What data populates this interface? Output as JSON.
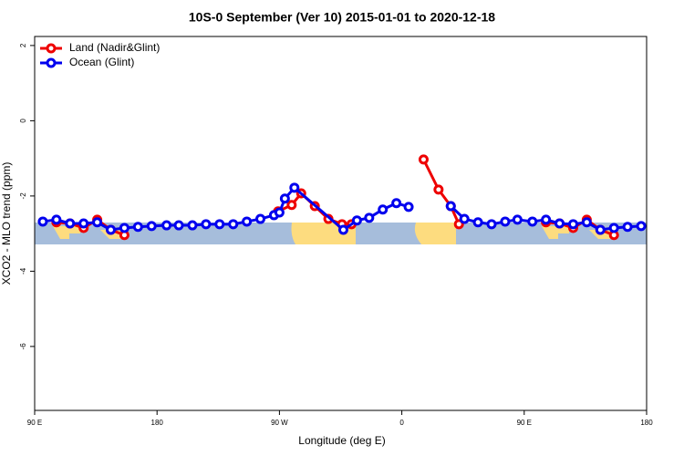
{
  "chart_data": {
    "type": "line",
    "title": "10S-0 September (Ver 10)   2015-01-01 to 2020-12-18",
    "x_label": "Longitude (deg E)",
    "y_label": "XCO2 - MLO trend (ppm)",
    "xlim": [
      90,
      540
    ],
    "xticks": [
      {
        "value": 90,
        "label": "90 E"
      },
      {
        "value": 180,
        "label": "180"
      },
      {
        "value": 270,
        "label": "90 W"
      },
      {
        "value": 360,
        "label": "0"
      },
      {
        "value": 450,
        "label": "90 E"
      },
      {
        "value": 540,
        "label": "180"
      }
    ],
    "ylim": [
      -7.7,
      2.24
    ],
    "yticks": [
      2,
      0,
      -2,
      -4,
      -6
    ],
    "legend": "top-left",
    "series": [
      {
        "name": "Land (Nadir&Glint)",
        "color": "#ee0000",
        "x": [
          106,
          116,
          126,
          136,
          146,
          156,
          200,
          269,
          279,
          286,
          296,
          306,
          316,
          323,
          350,
          376,
          387,
          396,
          402,
          430,
          466,
          476,
          486,
          496,
          506,
          516
        ],
        "values": [
          -2.7,
          -2.73,
          -2.85,
          -2.63,
          -2.9,
          -3.04,
          null,
          -2.41,
          -2.24,
          -1.93,
          -2.27,
          -2.61,
          -2.75,
          -2.75,
          null,
          -1.03,
          -1.83,
          -2.27,
          -2.75,
          null,
          -2.7,
          -2.73,
          -2.85,
          -2.63,
          -2.9,
          -3.04
        ]
      },
      {
        "name": "Ocean (Glint)",
        "color": "#0000ee",
        "x": [
          96,
          106,
          116,
          126,
          136,
          146,
          156,
          166,
          176,
          187,
          196,
          206,
          216,
          226,
          236,
          246,
          256,
          266,
          270,
          274,
          281,
          317,
          327,
          336,
          346,
          356,
          365,
          380,
          396,
          406,
          416,
          426,
          436,
          445,
          456,
          466,
          476,
          486,
          496,
          506,
          516,
          526,
          536
        ],
        "values": [
          -2.68,
          -2.63,
          -2.73,
          -2.73,
          -2.7,
          -2.9,
          -2.85,
          -2.82,
          -2.8,
          -2.78,
          -2.78,
          -2.78,
          -2.75,
          -2.75,
          -2.75,
          -2.68,
          -2.61,
          -2.51,
          -2.44,
          -2.07,
          -1.78,
          -2.9,
          -2.65,
          -2.58,
          -2.36,
          -2.19,
          -2.29,
          null,
          -2.27,
          -2.61,
          -2.7,
          -2.75,
          -2.68,
          -2.63,
          -2.68,
          -2.63,
          -2.73,
          -2.75,
          -2.7,
          -2.9,
          -2.85,
          -2.82,
          -2.8
        ]
      }
    ]
  }
}
